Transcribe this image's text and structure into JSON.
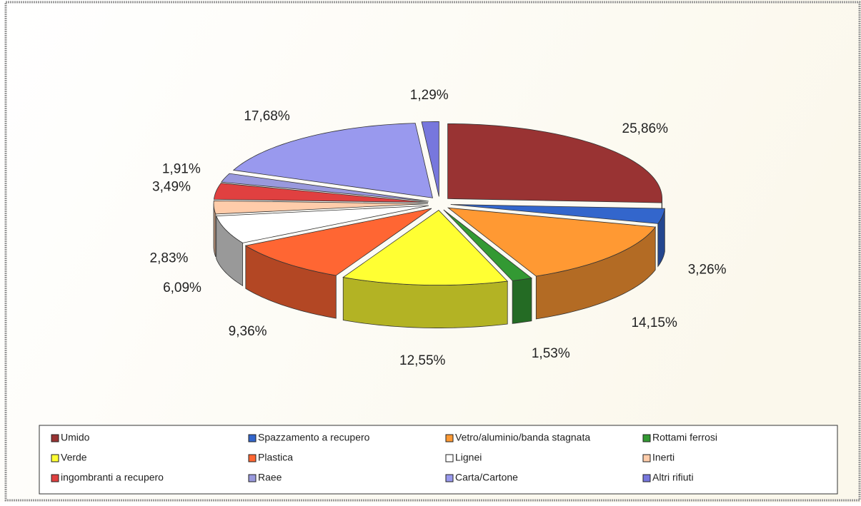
{
  "chart_data": {
    "type": "pie",
    "categories": [
      "Umido",
      "Spazzamento a recupero",
      "Vetro/aluminio/banda stagnata",
      "Rottami ferrosi",
      "Verde",
      "Plastica",
      "Lignei",
      "Inerti",
      "ingombranti a recupero",
      "Raee",
      "Carta/Cartone",
      "Altri rifiuti"
    ],
    "values": [
      25.86,
      3.26,
      14.15,
      1.53,
      12.55,
      9.36,
      6.09,
      2.83,
      3.49,
      1.91,
      17.68,
      1.29
    ],
    "value_labels": [
      "25,86%",
      "3,26%",
      "14,15%",
      "1,53%",
      "12,55%",
      "9,36%",
      "6,09%",
      "2,83%",
      "3,49%",
      "1,91%",
      "17,68%",
      "1,29%"
    ],
    "colors": [
      "#993333",
      "#3366cc",
      "#ff9933",
      "#339933",
      "#ffff33",
      "#ff6633",
      "#ffffff",
      "#ffccaa",
      "#e04040",
      "#9999dd",
      "#9999ee",
      "#7777dd"
    ]
  }
}
